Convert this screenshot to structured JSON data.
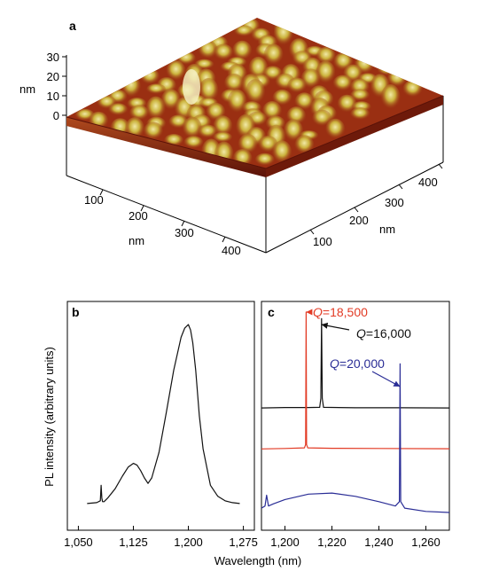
{
  "panel_a": {
    "label": "a",
    "z_label": "nm",
    "z_ticks": [
      "30",
      "20",
      "10",
      "0"
    ],
    "x_label": "nm",
    "x_ticks": [
      "100",
      "200",
      "300",
      "400"
    ],
    "y_label": "nm",
    "y_ticks": [
      "100",
      "200",
      "300",
      "400"
    ],
    "colors": {
      "low": "#7a1a0c",
      "mid": "#b4401a",
      "high": "#d8c64a",
      "peak": "#f3ecb0"
    }
  },
  "shared": {
    "ylabel": "PL intensity (arbitrary units)",
    "xlabel": "Wavelength (nm)"
  },
  "chart_data": [
    {
      "type": "line",
      "label": "b",
      "xlim": [
        1035,
        1290
      ],
      "ylim": [
        0,
        1
      ],
      "x_ticks": [
        1050,
        1125,
        1200,
        1275
      ],
      "x_tick_labels": [
        "1,050",
        "1,125",
        "1,200",
        "1,275"
      ],
      "series": [
        {
          "color": "#111111",
          "x": [
            1062,
            1075,
            1080,
            1081,
            1082,
            1083,
            1085,
            1090,
            1100,
            1110,
            1118,
            1125,
            1130,
            1135,
            1140,
            1145,
            1150,
            1160,
            1170,
            1180,
            1190,
            1195,
            1200,
            1203,
            1206,
            1210,
            1215,
            1220,
            1230,
            1240,
            1250,
            1260,
            1270
          ],
          "y": [
            0.02,
            0.025,
            0.035,
            0.12,
            0.05,
            0.03,
            0.03,
            0.05,
            0.1,
            0.17,
            0.22,
            0.24,
            0.23,
            0.2,
            0.16,
            0.13,
            0.16,
            0.3,
            0.52,
            0.75,
            0.93,
            0.98,
            1.0,
            0.97,
            0.9,
            0.75,
            0.5,
            0.32,
            0.12,
            0.06,
            0.035,
            0.025,
            0.02
          ]
        }
      ]
    },
    {
      "type": "line",
      "label": "c",
      "xlim": [
        1190,
        1270
      ],
      "ylim": [
        0,
        1
      ],
      "x_ticks": [
        1200,
        1220,
        1240,
        1260
      ],
      "x_tick_labels": [
        "1,200",
        "1,220",
        "1,240",
        "1,260"
      ],
      "annotations": [
        {
          "q_symbol": "Q",
          "text": "=18,500",
          "color": "#e23a24",
          "target_x": 1209
        },
        {
          "q_symbol": "Q",
          "text": "=16,000",
          "color": "#111111",
          "target_x": 1215.5
        },
        {
          "q_symbol": "Q",
          "text": "=20,000",
          "color": "#2a2d96",
          "target_x": 1249
        }
      ],
      "series": [
        {
          "color": "#111111",
          "x": [
            1190,
            1200,
            1210,
            1214.8,
            1215.3,
            1215.6,
            1215.9,
            1216.4,
            1230,
            1250,
            1270
          ],
          "y": [
            0.555,
            0.557,
            0.557,
            0.558,
            0.6,
            0.97,
            0.6,
            0.558,
            0.556,
            0.556,
            0.555
          ],
          "peak_wavelength": 1215.6
        },
        {
          "color": "#e23a24",
          "x": [
            1190,
            1200,
            1208.3,
            1208.8,
            1209,
            1209.2,
            1209.7,
            1220,
            1240,
            1270
          ],
          "y": [
            0.365,
            0.367,
            0.37,
            0.385,
            1.0,
            0.385,
            0.37,
            0.368,
            0.367,
            0.366
          ],
          "peak_wavelength": 1209
        },
        {
          "color": "#2a2d96",
          "x": [
            1190,
            1191.5,
            1192.2,
            1193,
            1195,
            1200,
            1210,
            1220,
            1230,
            1240,
            1247,
            1248.7,
            1249,
            1249.3,
            1251,
            1260,
            1270
          ],
          "y": [
            0.09,
            0.1,
            0.15,
            0.1,
            0.11,
            0.13,
            0.155,
            0.16,
            0.145,
            0.12,
            0.1,
            0.12,
            0.76,
            0.12,
            0.09,
            0.075,
            0.07
          ],
          "peak_wavelength": 1249
        }
      ]
    }
  ]
}
